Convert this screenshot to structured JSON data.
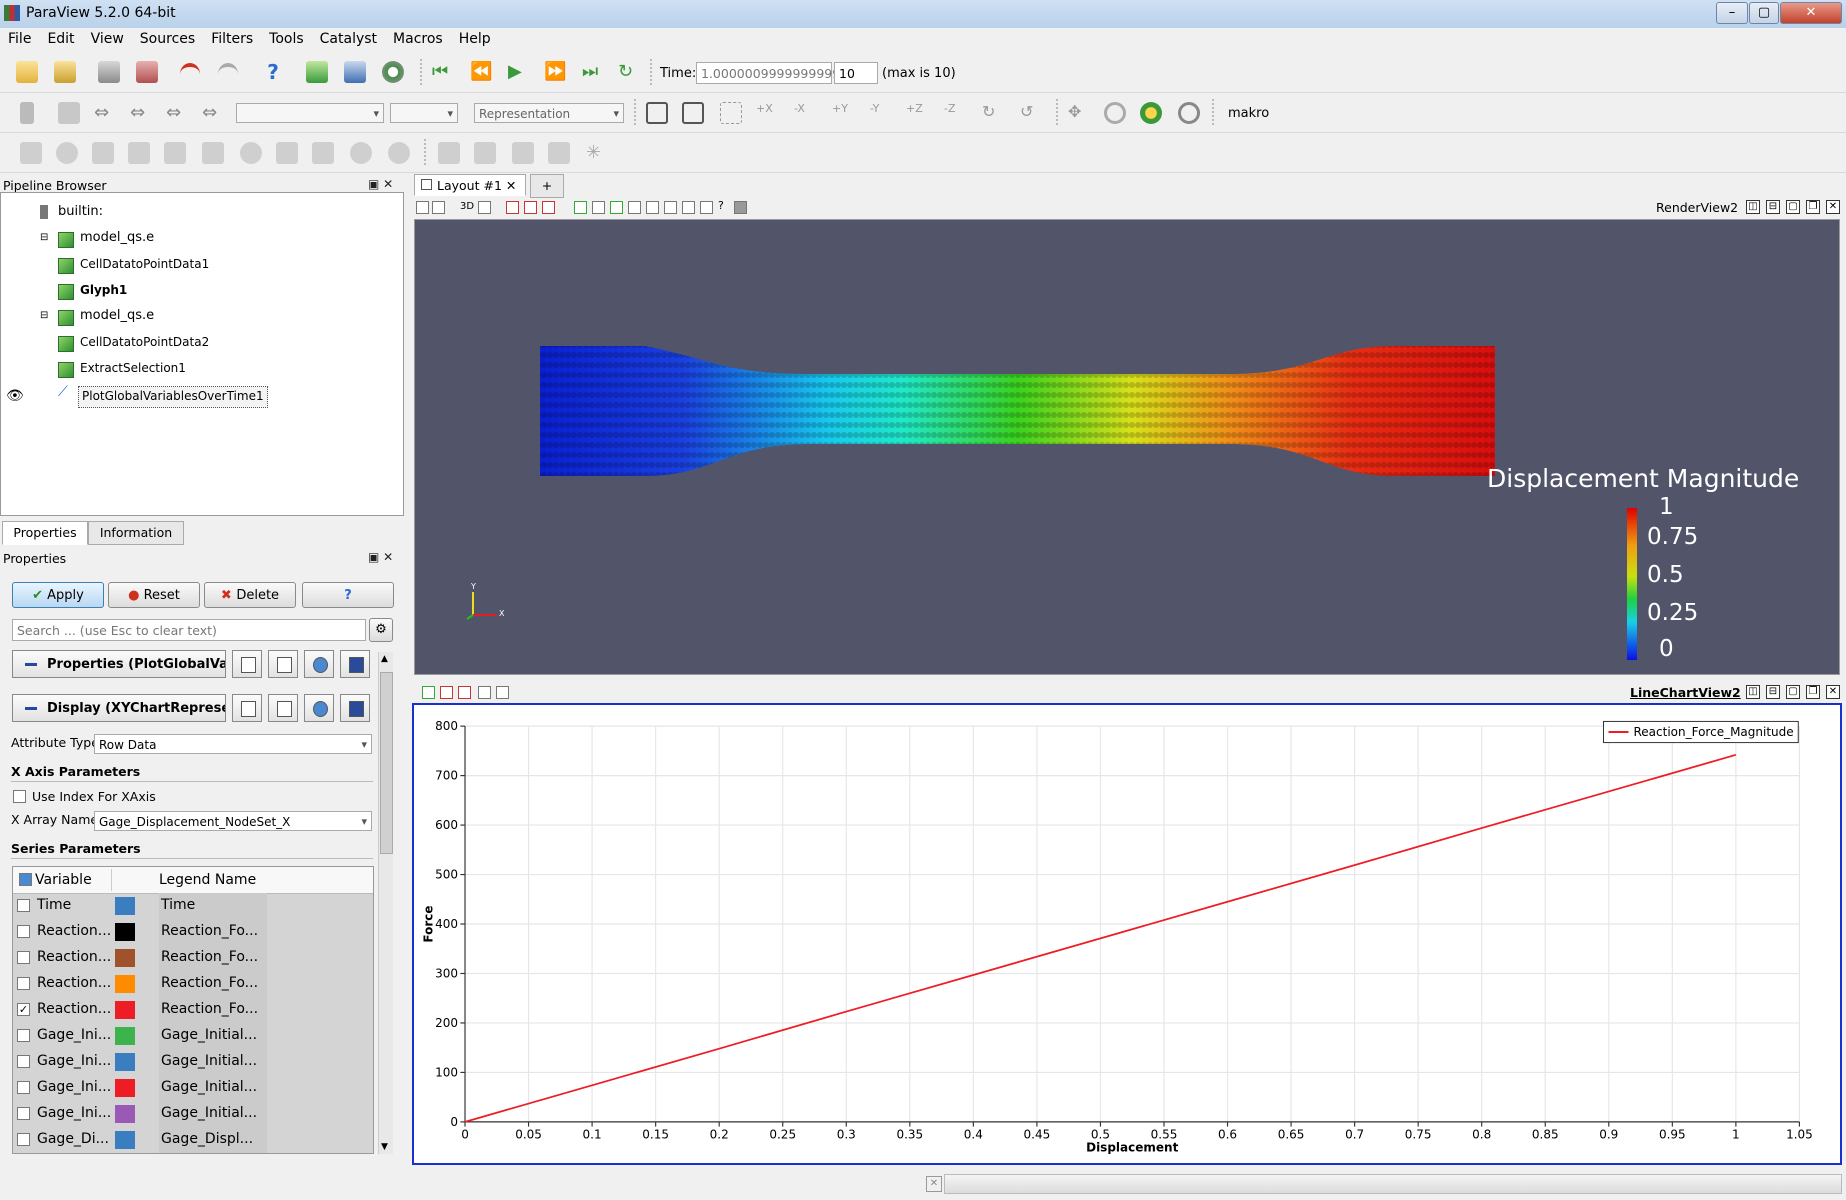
{
  "window": {
    "title": "ParaView 5.2.0 64-bit",
    "controls": [
      "–",
      "▢",
      "✕"
    ]
  },
  "menu": [
    "File",
    "Edit",
    "View",
    "Sources",
    "Filters",
    "Tools",
    "Catalyst",
    "Macros",
    "Help"
  ],
  "toolbar": {
    "time_label": "Time:",
    "time_value": "1.0000009999999999",
    "timestep": "10",
    "max_label": "(max is 10)",
    "representation": "Representation",
    "macro": "makro"
  },
  "pipeline": {
    "title": "Pipeline Browser",
    "items": [
      {
        "label": "builtin:",
        "bold": false
      },
      {
        "label": "model_qs.e",
        "bold": false
      },
      {
        "label": "CellDatatoPointData1",
        "bold": false
      },
      {
        "label": "Glyph1",
        "bold": true
      },
      {
        "label": "model_qs.e",
        "bold": false
      },
      {
        "label": "CellDatatoPointData2",
        "bold": false
      },
      {
        "label": "ExtractSelection1",
        "bold": false
      },
      {
        "label": "PlotGlobalVariablesOverTime1",
        "bold": false
      }
    ]
  },
  "tabs": {
    "properties": "Properties",
    "information": "Information"
  },
  "properties": {
    "title": "Properties",
    "apply": "Apply",
    "reset": "Reset",
    "delete": "Delete",
    "help": "?",
    "search_placeholder": "Search ... (use Esc to clear text)",
    "section_properties": "Properties (PlotGlobalVari",
    "section_display": "Display (XYChartRepreser",
    "attribute_type_label": "Attribute Type",
    "attribute_type_value": "Row Data",
    "x_axis_header": "X Axis Parameters",
    "use_index_label": "Use Index For XAxis",
    "x_array_label": "X Array Name",
    "x_array_value": "Gage_Displacement_NodeSet_X",
    "series_header": "Series Parameters",
    "col_variable": "Variable",
    "col_legend": "Legend Name",
    "series": [
      {
        "variable": "Time",
        "legend": "Time",
        "color": "#3a7ebf",
        "checked": false
      },
      {
        "variable": "Reaction...",
        "legend": "Reaction_Fo...",
        "color": "#000000",
        "checked": false
      },
      {
        "variable": "Reaction...",
        "legend": "Reaction_Fo...",
        "color": "#a0522d",
        "checked": false
      },
      {
        "variable": "Reaction...",
        "legend": "Reaction_Fo...",
        "color": "#ff8c00",
        "checked": false
      },
      {
        "variable": "Reaction...",
        "legend": "Reaction_Fo...",
        "color": "#ee1c25",
        "checked": true
      },
      {
        "variable": "Gage_Ini...",
        "legend": "Gage_Initial...",
        "color": "#3cb44b",
        "checked": false
      },
      {
        "variable": "Gage_Ini...",
        "legend": "Gage_Initial...",
        "color": "#3a7ebf",
        "checked": false
      },
      {
        "variable": "Gage_Ini...",
        "legend": "Gage_Initial...",
        "color": "#ee1c25",
        "checked": false
      },
      {
        "variable": "Gage_Ini...",
        "legend": "Gage_Initial...",
        "color": "#9b59b6",
        "checked": false
      },
      {
        "variable": "Gage_Di...",
        "legend": "Gage_Displ...",
        "color": "#3a7ebf",
        "checked": false
      }
    ]
  },
  "layout": {
    "tab": "Layout #1",
    "add": "+"
  },
  "render_view": {
    "name": "RenderView2",
    "mode": "3D",
    "colorbar": {
      "title": "Displacement Magnitude",
      "labels": [
        "1",
        "0.75",
        "0.5",
        "0.25",
        "0"
      ]
    },
    "axes": {
      "x": "X",
      "y": "Y"
    }
  },
  "chart_view": {
    "name": "LineChartView2"
  },
  "chart_data": {
    "type": "line",
    "xlabel": "Displacement",
    "ylabel": "Force",
    "xlim": [
      0,
      1.05
    ],
    "ylim": [
      0,
      800
    ],
    "xticks": [
      "0",
      "0.05",
      "0.1",
      "0.15",
      "0.2",
      "0.25",
      "0.3",
      "0.35",
      "0.4",
      "0.45",
      "0.5",
      "0.55",
      "0.6",
      "0.65",
      "0.7",
      "0.75",
      "0.8",
      "0.85",
      "0.9",
      "0.95",
      "1",
      "1.05"
    ],
    "yticks": [
      "0",
      "100",
      "200",
      "300",
      "400",
      "500",
      "600",
      "700",
      "800"
    ],
    "legend_position": "top-right",
    "series": [
      {
        "name": "Reaction_Force_Magnitude",
        "color": "#ee1c25",
        "x": [
          0,
          0.1,
          0.2,
          0.3,
          0.4,
          0.5,
          0.6,
          0.7,
          0.8,
          0.9,
          1.0
        ],
        "y": [
          0,
          74,
          148,
          223,
          297,
          371,
          445,
          519,
          594,
          668,
          742
        ]
      }
    ],
    "grid": true
  }
}
